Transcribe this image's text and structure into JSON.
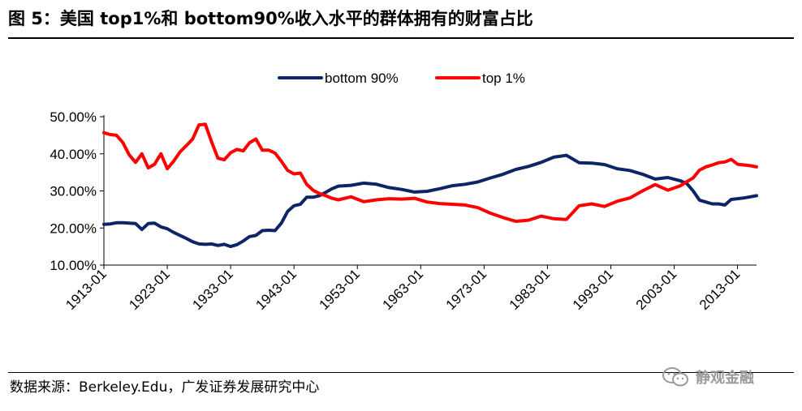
{
  "header": {
    "title": "图 5：美国 top1%和 bottom90%收入水平的群体拥有的财富占比"
  },
  "footer": {
    "source": "数据来源：Berkeley.Edu，广发证券发展研究中心",
    "watermark": "静观金融"
  },
  "colors": {
    "bottom90": "#0b2566",
    "top1": "#ff0000"
  },
  "chart_data": {
    "type": "line",
    "title": "",
    "xlabel": "",
    "ylabel": "",
    "ylim": [
      0.1,
      0.5
    ],
    "xlim": [
      1913,
      2016
    ],
    "y_ticks": [
      "10.00%",
      "20.00%",
      "30.00%",
      "40.00%",
      "50.00%"
    ],
    "x_ticks": [
      "1913-01",
      "1923-01",
      "1933-01",
      "1943-01",
      "1953-01",
      "1963-01",
      "1973-01",
      "1983-01",
      "1993-01",
      "2003-01",
      "2013-01"
    ],
    "legend_position": "top-center",
    "series": [
      {
        "name": "bottom 90%",
        "x": [
          1913,
          1914,
          1915,
          1916,
          1917,
          1918,
          1919,
          1920,
          1921,
          1922,
          1923,
          1924,
          1925,
          1926,
          1927,
          1928,
          1929,
          1930,
          1931,
          1932,
          1933,
          1934,
          1935,
          1936,
          1937,
          1938,
          1939,
          1940,
          1941,
          1942,
          1943,
          1944,
          1945,
          1946,
          1947,
          1948,
          1949,
          1950,
          1952,
          1954,
          1956,
          1958,
          1960,
          1962,
          1964,
          1966,
          1968,
          1970,
          1972,
          1974,
          1976,
          1978,
          1980,
          1982,
          1984,
          1986,
          1988,
          1990,
          1992,
          1994,
          1996,
          1998,
          2000,
          2002,
          2004,
          2005,
          2006,
          2007,
          2008,
          2009,
          2010,
          2011,
          2012,
          2013,
          2014,
          2015,
          2016
        ],
        "values": [
          0.21,
          0.211,
          0.214,
          0.214,
          0.213,
          0.212,
          0.196,
          0.212,
          0.213,
          0.203,
          0.198,
          0.188,
          0.18,
          0.172,
          0.163,
          0.157,
          0.156,
          0.157,
          0.153,
          0.156,
          0.15,
          0.155,
          0.165,
          0.177,
          0.18,
          0.193,
          0.194,
          0.193,
          0.213,
          0.245,
          0.26,
          0.264,
          0.283,
          0.283,
          0.287,
          0.296,
          0.306,
          0.313,
          0.315,
          0.321,
          0.318,
          0.309,
          0.304,
          0.297,
          0.299,
          0.306,
          0.314,
          0.318,
          0.324,
          0.335,
          0.345,
          0.358,
          0.366,
          0.377,
          0.391,
          0.396,
          0.376,
          0.375,
          0.371,
          0.36,
          0.355,
          0.345,
          0.332,
          0.336,
          0.327,
          0.32,
          0.3,
          0.275,
          0.27,
          0.265,
          0.265,
          0.262,
          0.277,
          0.279,
          0.281,
          0.284,
          0.287
        ]
      },
      {
        "name": "top 1%",
        "x": [
          1913,
          1914,
          1915,
          1916,
          1917,
          1918,
          1919,
          1920,
          1921,
          1922,
          1923,
          1924,
          1925,
          1926,
          1927,
          1928,
          1929,
          1930,
          1931,
          1932,
          1933,
          1934,
          1935,
          1936,
          1937,
          1938,
          1939,
          1940,
          1941,
          1942,
          1943,
          1944,
          1945,
          1946,
          1947,
          1948,
          1949,
          1950,
          1952,
          1954,
          1956,
          1958,
          1960,
          1962,
          1964,
          1966,
          1968,
          1970,
          1972,
          1974,
          1976,
          1978,
          1980,
          1982,
          1984,
          1986,
          1988,
          1990,
          1992,
          1994,
          1996,
          1998,
          2000,
          2002,
          2004,
          2005,
          2006,
          2007,
          2008,
          2009,
          2010,
          2011,
          2012,
          2013,
          2014,
          2015,
          2016
        ],
        "values": [
          0.457,
          0.452,
          0.45,
          0.43,
          0.397,
          0.377,
          0.4,
          0.362,
          0.372,
          0.4,
          0.36,
          0.38,
          0.405,
          0.422,
          0.44,
          0.478,
          0.48,
          0.432,
          0.388,
          0.384,
          0.403,
          0.412,
          0.408,
          0.43,
          0.44,
          0.41,
          0.41,
          0.402,
          0.38,
          0.355,
          0.346,
          0.348,
          0.318,
          0.302,
          0.293,
          0.287,
          0.28,
          0.276,
          0.284,
          0.271,
          0.276,
          0.279,
          0.278,
          0.28,
          0.27,
          0.266,
          0.264,
          0.262,
          0.255,
          0.24,
          0.228,
          0.218,
          0.221,
          0.232,
          0.225,
          0.223,
          0.26,
          0.265,
          0.258,
          0.272,
          0.281,
          0.3,
          0.317,
          0.302,
          0.314,
          0.325,
          0.335,
          0.356,
          0.365,
          0.37,
          0.376,
          0.378,
          0.385,
          0.372,
          0.37,
          0.368,
          0.365
        ]
      }
    ]
  }
}
